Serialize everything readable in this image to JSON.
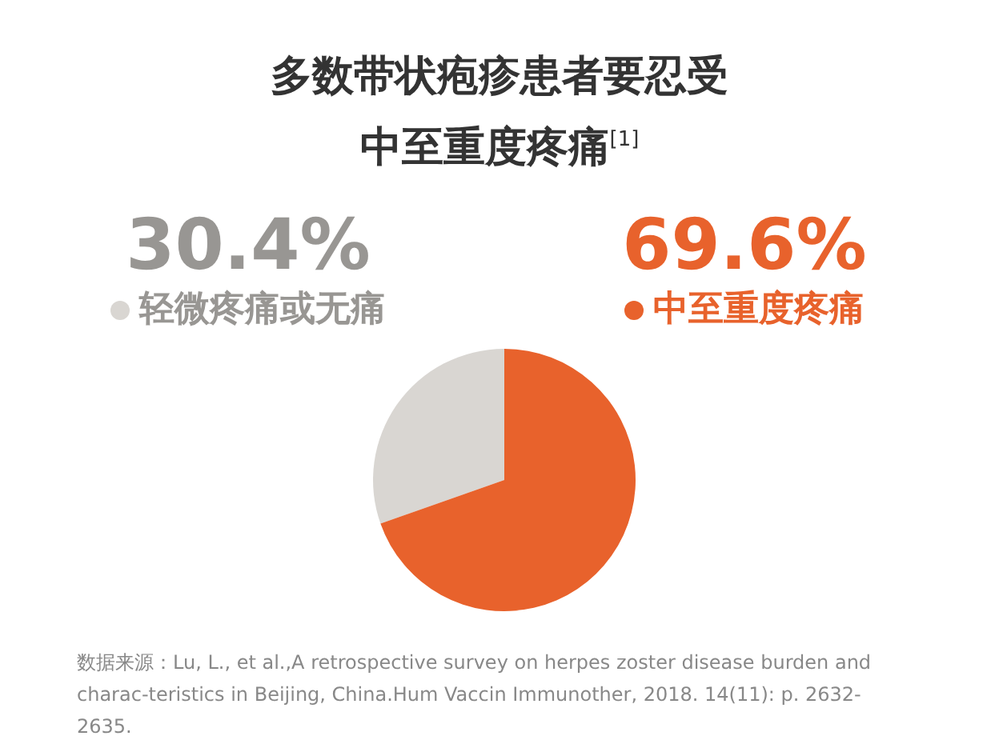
{
  "chart_data": {
    "type": "pie",
    "title": "多数带状疱疹患者要忍受中至重度疼痛$^{[1]}$",
    "categories": [
      "轻微疼痛或无痛",
      "中至重度疼痛"
    ],
    "values": [
      30.4,
      69.6
    ],
    "colors": [
      "#d9d6d2",
      "#e8622c"
    ],
    "value_labels": [
      "30.4%",
      "69.6%"
    ],
    "legend": "top",
    "annotations": [
      "数据来源：Lu, L., et al.,A retrospective survey on herpes zoster disease burden and charac-teristics in Beijing, China.Hum Vaccin Immunother, 2018. 14(11): p. 2632-2635."
    ]
  }
}
